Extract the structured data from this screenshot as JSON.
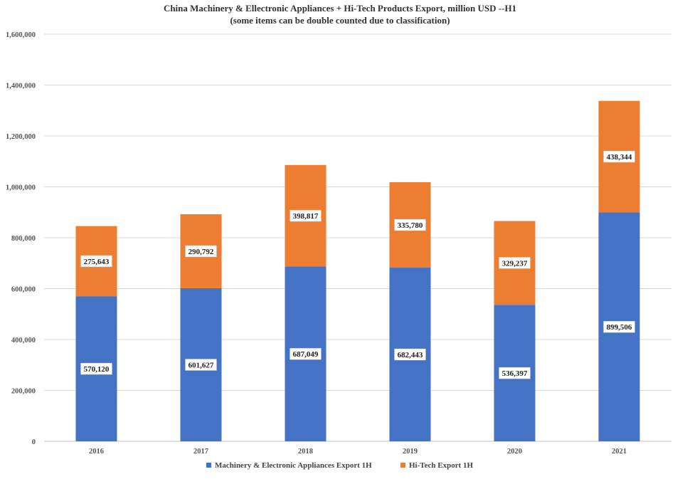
{
  "chart_data": {
    "type": "bar",
    "stacked": true,
    "title": "China Machinery & Ellectronic Appliances + Hi-Tech Products Export, million USD --H1",
    "subtitle": "(some items can be double counted due to classification)",
    "categories": [
      "2016",
      "2017",
      "2018",
      "2019",
      "2020",
      "2021"
    ],
    "series": [
      {
        "name": "Machinery & Electronic Appliances Export 1H",
        "color": "#4472C4",
        "values": [
          570120,
          601627,
          687049,
          682443,
          536397,
          899506
        ],
        "labels": [
          "570,120",
          "601,627",
          "687,049",
          "682,443",
          "536,397",
          "899,506"
        ]
      },
      {
        "name": "Hi-Tech Export 1H",
        "color": "#ED7D31",
        "values": [
          275643,
          290792,
          398817,
          335780,
          329237,
          438344
        ],
        "labels": [
          "275,643",
          "290,792",
          "398,817",
          "335,780",
          "329,237",
          "438,344"
        ]
      }
    ],
    "ylim": [
      0,
      1600000
    ],
    "y_ticks": [
      0,
      200000,
      400000,
      600000,
      800000,
      1000000,
      1200000,
      1400000,
      1600000
    ],
    "y_tick_labels": [
      "0",
      "200,000",
      "400,000",
      "600,000",
      "800,000",
      "1,000,000",
      "1,200,000",
      "1,400,000",
      "1,600,000"
    ],
    "grid": true,
    "legend_position": "bottom",
    "gridline_color": "#D9D9D9"
  }
}
